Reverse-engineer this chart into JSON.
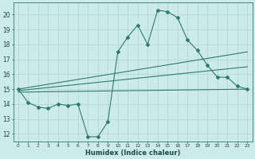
{
  "xlabel": "Humidex (Indice chaleur)",
  "xlim": [
    -0.5,
    23.5
  ],
  "ylim": [
    11.5,
    20.8
  ],
  "yticks": [
    12,
    13,
    14,
    15,
    16,
    17,
    18,
    19,
    20
  ],
  "xticks": [
    0,
    1,
    2,
    3,
    4,
    5,
    6,
    7,
    8,
    9,
    10,
    11,
    12,
    13,
    14,
    15,
    16,
    17,
    18,
    19,
    20,
    21,
    22,
    23
  ],
  "bg_color": "#cdeaea",
  "line_color": "#2d7b6f",
  "grid_color": "#b0d4d4",
  "series_main": {
    "x": [
      0,
      1,
      2,
      3,
      4,
      5,
      6,
      7,
      8,
      9,
      10,
      11,
      12,
      13,
      14,
      15,
      16,
      17,
      18,
      19,
      20,
      21,
      22,
      23
    ],
    "y": [
      15.0,
      14.1,
      13.8,
      13.7,
      14.0,
      13.9,
      14.0,
      11.8,
      11.8,
      12.8,
      17.5,
      18.5,
      19.3,
      18.0,
      20.3,
      20.2,
      19.8,
      18.3,
      17.6,
      16.6,
      15.8,
      15.8,
      15.2,
      15.0
    ]
  },
  "series_trend1": {
    "x": [
      0,
      23
    ],
    "y": [
      14.8,
      15.0
    ]
  },
  "series_trend2": {
    "x": [
      0,
      23
    ],
    "y": [
      14.9,
      16.5
    ]
  },
  "series_trend3": {
    "x": [
      0,
      23
    ],
    "y": [
      15.0,
      17.5
    ]
  }
}
